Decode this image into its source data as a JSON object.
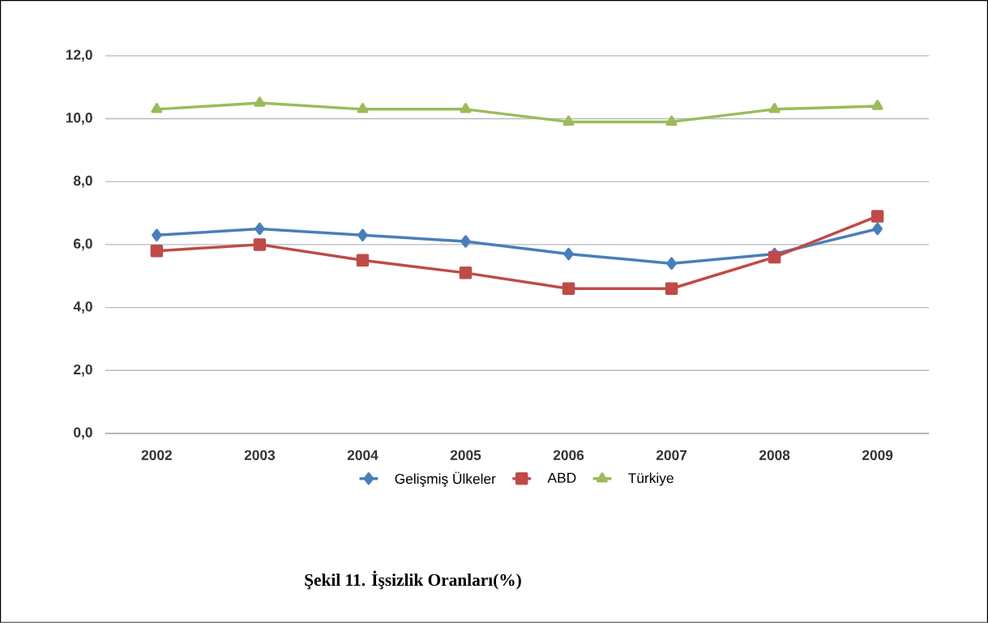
{
  "chart_data": {
    "type": "line",
    "title": "Şekil 11. İşsizlik Oranları(%)",
    "categories": [
      "2002",
      "2003",
      "2004",
      "2005",
      "2006",
      "2007",
      "2008",
      "2009"
    ],
    "series": [
      {
        "name": "Gelişmiş Ülkeler",
        "color": "#4a7ebb",
        "marker": "diamond",
        "values": [
          6.3,
          6.5,
          6.3,
          6.1,
          5.7,
          5.4,
          5.7,
          6.5
        ]
      },
      {
        "name": "ABD",
        "color": "#be4b48",
        "marker": "square",
        "values": [
          5.8,
          6.0,
          5.5,
          5.1,
          4.6,
          4.6,
          5.6,
          6.9
        ]
      },
      {
        "name": "Türkiye",
        "color": "#9bbb59",
        "marker": "triangle",
        "values": [
          10.3,
          10.5,
          10.3,
          10.3,
          9.9,
          9.9,
          10.3,
          10.4
        ]
      }
    ],
    "ylim": [
      0,
      12
    ],
    "yticks": [
      {
        "value": 0,
        "label": "0,0"
      },
      {
        "value": 2,
        "label": "2,0"
      },
      {
        "value": 4,
        "label": "4,0"
      },
      {
        "value": 6,
        "label": "6,0"
      },
      {
        "value": 8,
        "label": "8,0"
      },
      {
        "value": 10,
        "label": "10,0"
      },
      {
        "value": 12,
        "label": "12,0"
      }
    ],
    "grid": "y",
    "legend": "bottom",
    "line_style": "solid"
  }
}
